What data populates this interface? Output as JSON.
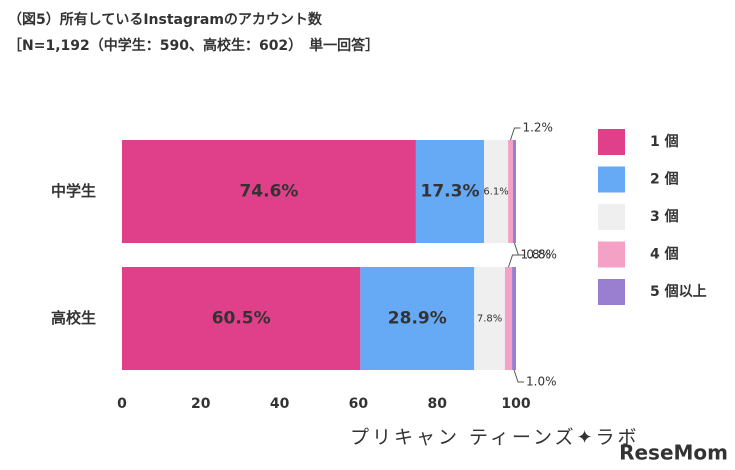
{
  "chart_data": {
    "type": "stacked-bar-horizontal",
    "title": "（図5）所有しているInstagramのアカウント数",
    "subtitle": "［N=1,192（中学生：590、高校生：602）　単一回答］",
    "categories": [
      "中学生",
      "高校生"
    ],
    "series": [
      {
        "name": "1 個",
        "color": "#e0408a",
        "values": [
          74.6,
          60.5
        ],
        "value_labels": [
          "74.6%",
          "60.5%"
        ]
      },
      {
        "name": "2 個",
        "color": "#66aaf5",
        "values": [
          17.3,
          28.9
        ],
        "value_labels": [
          "17.3%",
          "28.9%"
        ]
      },
      {
        "name": "3 個",
        "color": "#efefef",
        "values": [
          6.1,
          7.8
        ],
        "value_labels": [
          "6.1%",
          "7.8%"
        ]
      },
      {
        "name": "4 個",
        "color": "#f5a0c5",
        "values": [
          1.2,
          1.8
        ],
        "value_labels": [
          "1.2%",
          "1.8%"
        ]
      },
      {
        "name": "5 個以上",
        "color": "#9a7fd0",
        "values": [
          0.8,
          1.0
        ],
        "value_labels": [
          "0.8%",
          "1.0%"
        ]
      }
    ],
    "xlim": [
      0,
      100
    ],
    "xticks": [
      0,
      20,
      40,
      60,
      80,
      100
    ],
    "grid": false,
    "legend": "right"
  },
  "brand": {
    "logo": "プリキャン ティーンズ✦ラボ",
    "watermark": "ReseMom"
  }
}
